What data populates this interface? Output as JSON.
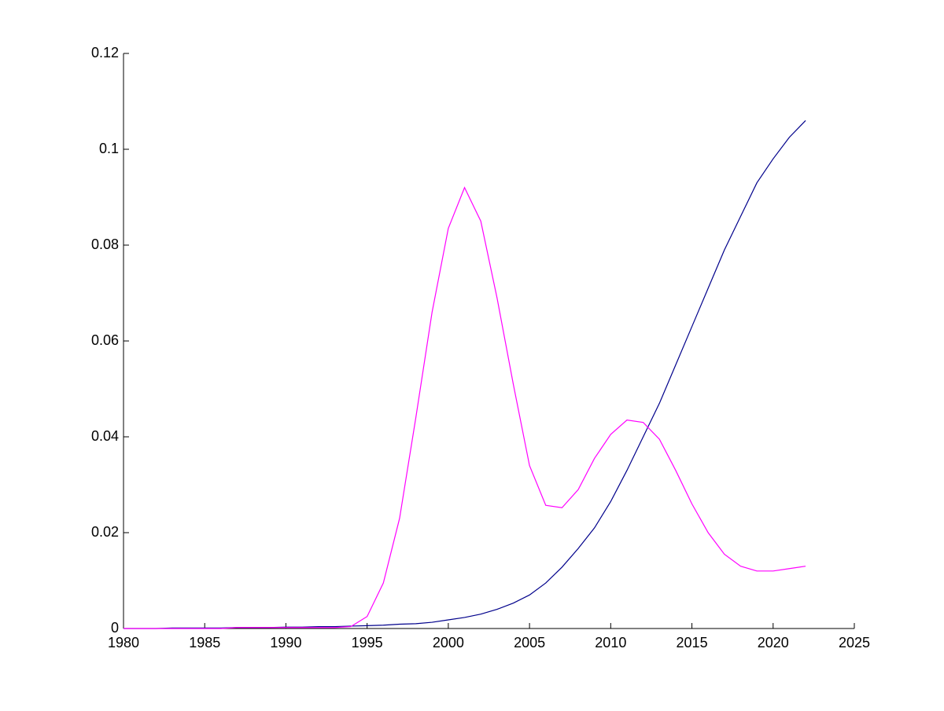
{
  "chart_data": {
    "type": "line",
    "x": [
      1980,
      1981,
      1982,
      1983,
      1984,
      1985,
      1986,
      1987,
      1988,
      1989,
      1990,
      1991,
      1992,
      1993,
      1994,
      1995,
      1996,
      1997,
      1998,
      1999,
      2000,
      2001,
      2002,
      2003,
      2004,
      2005,
      2006,
      2007,
      2008,
      2009,
      2010,
      2011,
      2012,
      2013,
      2014,
      2015,
      2016,
      2017,
      2018,
      2019,
      2020,
      2021,
      2022
    ],
    "series": [
      {
        "color": "#00008b",
        "values": [
          0,
          0,
          0,
          0.0001,
          0.0001,
          0.0001,
          0.0001,
          0.0002,
          0.0002,
          0.0002,
          0.0003,
          0.0003,
          0.0004,
          0.0004,
          0.0005,
          0.0006,
          0.0007,
          0.0009,
          0.001,
          0.0013,
          0.0018,
          0.0023,
          0.003,
          0.004,
          0.0053,
          0.007,
          0.0095,
          0.0128,
          0.0167,
          0.021,
          0.0265,
          0.033,
          0.04,
          0.047,
          0.055,
          0.063,
          0.071,
          0.079,
          0.086,
          0.093,
          0.098,
          0.1025,
          0.106
        ]
      },
      {
        "color": "#ff00ff",
        "values": [
          0,
          0,
          0,
          0,
          0,
          0,
          0,
          0.0002,
          0.0002,
          0.0002,
          0.0002,
          0.0002,
          0.0002,
          0.0002,
          0.0004,
          0.0025,
          0.0095,
          0.023,
          0.044,
          0.066,
          0.0835,
          0.092,
          0.085,
          0.069,
          0.051,
          0.034,
          0.0257,
          0.0252,
          0.029,
          0.0355,
          0.0405,
          0.0435,
          0.043,
          0.0395,
          0.033,
          0.026,
          0.02,
          0.0155,
          0.013,
          0.012,
          0.012,
          0.0125,
          0.013
        ]
      }
    ],
    "xlim": [
      1980,
      2025
    ],
    "xticks": [
      1980,
      1985,
      1990,
      1995,
      2000,
      2005,
      2010,
      2015,
      2020,
      2025
    ],
    "ylim": [
      0,
      0.12
    ],
    "yticks": [
      0,
      0.02,
      0.04,
      0.06,
      0.08,
      0.1,
      0.12
    ]
  }
}
